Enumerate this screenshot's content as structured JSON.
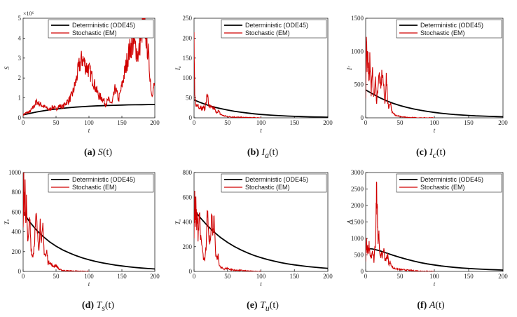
{
  "legend": {
    "deterministic": "Deterministic (ODE45)",
    "stochastic": "Stochastic (EM)"
  },
  "colors": {
    "deterministic": "#000000",
    "stochastic": "#d00000"
  },
  "chart_data": [
    {
      "id": "a",
      "type": "line",
      "caption_tag": "(a)",
      "caption_var": "S",
      "caption_arg": "(t)",
      "ylabel": "S",
      "xlabel": "t",
      "exponent": "×10⁶",
      "xlim": [
        0,
        200
      ],
      "ylim": [
        0,
        5
      ],
      "xticks": [
        0,
        50,
        100,
        150,
        200
      ],
      "yticks": [
        0,
        1,
        2,
        3,
        4,
        5
      ],
      "series": [
        {
          "name": "Deterministic (ODE45)",
          "x": [
            0,
            10,
            20,
            30,
            40,
            50,
            60,
            70,
            80,
            90,
            100,
            110,
            120,
            130,
            140,
            150,
            160,
            170,
            180,
            190,
            200
          ],
          "y": [
            0.15,
            0.22,
            0.29,
            0.35,
            0.4,
            0.44,
            0.48,
            0.51,
            0.54,
            0.56,
            0.58,
            0.6,
            0.61,
            0.62,
            0.63,
            0.64,
            0.65,
            0.655,
            0.66,
            0.665,
            0.67
          ]
        },
        {
          "name": "Stochastic (EM)",
          "x": [
            0,
            5,
            10,
            15,
            20,
            25,
            30,
            35,
            40,
            45,
            50,
            55,
            60,
            65,
            70,
            75,
            80,
            85,
            90,
            95,
            100,
            105,
            110,
            115,
            120,
            125,
            130,
            135,
            140,
            145,
            150,
            155,
            160,
            165,
            170,
            175,
            180,
            185,
            190,
            195,
            200
          ],
          "y": [
            0.15,
            0.25,
            0.3,
            0.5,
            0.8,
            0.7,
            0.6,
            0.5,
            0.4,
            0.55,
            0.45,
            0.6,
            0.55,
            0.75,
            0.9,
            1.2,
            1.8,
            2.6,
            3.0,
            2.6,
            2.4,
            2.0,
            1.5,
            1.1,
            1.0,
            0.7,
            0.9,
            0.7,
            1.5,
            0.9,
            1.6,
            2.4,
            3.2,
            3.7,
            3.6,
            3.1,
            4.4,
            4.6,
            3.2,
            1.2,
            1.7
          ]
        }
      ]
    },
    {
      "id": "b",
      "type": "line",
      "caption_tag": "(b)",
      "caption_var": "I",
      "caption_sub": "a",
      "caption_arg": "(t)",
      "ylabel": "Iₐ",
      "xlabel": "t",
      "exponent": "",
      "xlim": [
        0,
        200
      ],
      "ylim": [
        0,
        250
      ],
      "xticks": [
        0,
        50,
        100,
        150,
        200
      ],
      "yticks": [
        0,
        50,
        100,
        150,
        200,
        250
      ],
      "series": [
        {
          "name": "Deterministic (ODE45)",
          "x": [
            0,
            10,
            20,
            30,
            40,
            50,
            60,
            70,
            80,
            90,
            100,
            110,
            120,
            130,
            140,
            150,
            160,
            170,
            180,
            190,
            200
          ],
          "y": [
            45,
            38,
            32,
            27,
            23,
            19.5,
            16.5,
            14,
            12,
            10,
            8.5,
            7.2,
            6.1,
            5.2,
            4.4,
            3.7,
            3.1,
            2.6,
            2.2,
            1.9,
            1.6
          ]
        },
        {
          "name": "Stochastic (EM)",
          "x": [
            0,
            1,
            2,
            4,
            6,
            8,
            10,
            12,
            14,
            16,
            18,
            20,
            22,
            24,
            26,
            28,
            30,
            33,
            36,
            40,
            45,
            50,
            60,
            70,
            80,
            90,
            100
          ],
          "y": [
            200,
            50,
            40,
            28,
            35,
            25,
            30,
            22,
            28,
            20,
            45,
            58,
            30,
            28,
            25,
            22,
            26,
            12,
            18,
            8,
            5,
            3,
            2,
            1,
            0.5,
            0.3,
            0
          ]
        }
      ]
    },
    {
      "id": "c",
      "type": "line",
      "caption_tag": "(c)",
      "caption_var": "I",
      "caption_sub": "c",
      "caption_arg": "(t)",
      "ylabel": "Iᶜ",
      "xlabel": "t",
      "exponent": "",
      "xlim": [
        0,
        200
      ],
      "ylim": [
        0,
        1500
      ],
      "xticks": [
        0,
        50,
        100,
        150,
        200
      ],
      "yticks": [
        0,
        500,
        1000,
        1500
      ],
      "series": [
        {
          "name": "Deterministic (ODE45)",
          "x": [
            0,
            10,
            20,
            30,
            40,
            50,
            60,
            70,
            80,
            90,
            100,
            110,
            120,
            130,
            140,
            150,
            160,
            170,
            180,
            190,
            200
          ],
          "y": [
            420,
            360,
            305,
            258,
            218,
            185,
            157,
            133,
            113,
            96,
            81,
            69,
            58,
            49,
            42,
            36,
            30,
            26,
            22,
            19,
            16
          ]
        },
        {
          "name": "Stochastic (EM)",
          "x": [
            0,
            1,
            2,
            3,
            4,
            5,
            6,
            8,
            10,
            12,
            14,
            16,
            18,
            20,
            22,
            24,
            26,
            28,
            30,
            32,
            34,
            36,
            38,
            40,
            45,
            50,
            55,
            60,
            70,
            80,
            90,
            100
          ],
          "y": [
            300,
            1250,
            700,
            1000,
            800,
            550,
            900,
            400,
            650,
            300,
            550,
            250,
            500,
            650,
            420,
            700,
            500,
            200,
            600,
            250,
            150,
            250,
            100,
            60,
            40,
            20,
            10,
            5,
            2,
            1,
            0,
            0
          ]
        }
      ]
    },
    {
      "id": "d",
      "type": "line",
      "caption_tag": "(d)",
      "caption_var": "T",
      "caption_sub": "s",
      "caption_arg": "(t)",
      "ylabel": "Tₛ",
      "xlabel": "t",
      "exponent": "",
      "xlim": [
        0,
        200
      ],
      "ylim": [
        0,
        1000
      ],
      "xticks": [
        0,
        50,
        100,
        150,
        200
      ],
      "yticks": [
        0,
        200,
        400,
        600,
        800,
        1000
      ],
      "series": [
        {
          "name": "Deterministic (ODE45)",
          "x": [
            0,
            10,
            20,
            30,
            40,
            50,
            60,
            70,
            80,
            90,
            100,
            110,
            120,
            130,
            140,
            150,
            160,
            170,
            180,
            190,
            200
          ],
          "y": [
            600,
            500,
            420,
            355,
            300,
            255,
            218,
            187,
            160,
            137,
            118,
            101,
            87,
            75,
            64,
            55,
            47,
            40,
            34,
            29,
            25
          ]
        },
        {
          "name": "Stochastic (EM)",
          "x": [
            0,
            1,
            2,
            3,
            4,
            5,
            6,
            8,
            10,
            12,
            14,
            16,
            18,
            20,
            22,
            24,
            26,
            28,
            30,
            32,
            34,
            36,
            38,
            40,
            45,
            50,
            55,
            60,
            70,
            80,
            90,
            100
          ],
          "y": [
            500,
            900,
            650,
            800,
            500,
            700,
            450,
            300,
            550,
            250,
            150,
            200,
            400,
            550,
            350,
            250,
            500,
            300,
            420,
            200,
            150,
            200,
            80,
            100,
            50,
            60,
            20,
            10,
            5,
            3,
            1,
            0
          ]
        }
      ]
    },
    {
      "id": "e",
      "type": "line",
      "caption_tag": "(e)",
      "caption_var": "T",
      "caption_sub": "u",
      "caption_arg": "(t)",
      "ylabel": "Tᵤ",
      "xlabel": "t",
      "exponent": "",
      "xlim": [
        0,
        200
      ],
      "ylim": [
        0,
        800
      ],
      "xticks": [
        0,
        50,
        100,
        150,
        200
      ],
      "yticks": [
        0,
        200,
        400,
        600,
        800
      ],
      "series": [
        {
          "name": "Deterministic (ODE45)",
          "x": [
            0,
            10,
            20,
            30,
            40,
            50,
            60,
            70,
            80,
            90,
            100,
            110,
            120,
            130,
            140,
            150,
            160,
            170,
            180,
            190,
            200
          ],
          "y": [
            500,
            430,
            370,
            318,
            273,
            235,
            202,
            174,
            150,
            129,
            111,
            96,
            83,
            71,
            61,
            53,
            46,
            39,
            34,
            29,
            25
          ]
        },
        {
          "name": "Stochastic (EM)",
          "x": [
            0,
            1,
            2,
            3,
            4,
            5,
            6,
            8,
            10,
            12,
            14,
            16,
            18,
            20,
            22,
            24,
            26,
            28,
            30,
            32,
            34,
            36,
            38,
            40,
            45,
            50,
            55,
            60,
            70,
            80,
            90,
            100
          ],
          "y": [
            300,
            620,
            400,
            550,
            350,
            450,
            300,
            500,
            250,
            200,
            100,
            80,
            200,
            500,
            300,
            250,
            450,
            350,
            400,
            150,
            100,
            120,
            50,
            30,
            20,
            25,
            15,
            10,
            8,
            3,
            1,
            0
          ]
        }
      ]
    },
    {
      "id": "f",
      "type": "line",
      "caption_tag": "(f)",
      "caption_var": "A",
      "caption_arg": "(t)",
      "ylabel": "A",
      "xlabel": "t",
      "exponent": "",
      "xlim": [
        0,
        200
      ],
      "ylim": [
        0,
        3000
      ],
      "xticks": [
        0,
        50,
        100,
        150,
        200
      ],
      "yticks": [
        0,
        500,
        1000,
        1500,
        2000,
        2500,
        3000
      ],
      "series": [
        {
          "name": "Deterministic (ODE45)",
          "x": [
            0,
            10,
            20,
            30,
            40,
            50,
            60,
            70,
            80,
            90,
            100,
            110,
            120,
            130,
            140,
            150,
            160,
            170,
            180,
            190,
            200
          ],
          "y": [
            700,
            680,
            630,
            560,
            490,
            425,
            365,
            312,
            267,
            228,
            195,
            167,
            143,
            122,
            104,
            89,
            76,
            65,
            56,
            48,
            41
          ]
        },
        {
          "name": "Stochastic (EM)",
          "x": [
            0,
            1,
            2,
            3,
            4,
            5,
            6,
            8,
            10,
            12,
            14,
            15,
            16,
            17,
            18,
            19,
            20,
            22,
            24,
            26,
            28,
            30,
            32,
            34,
            36,
            38,
            40,
            45,
            50,
            60,
            70,
            80,
            90,
            100
          ],
          "y": [
            300,
            950,
            600,
            750,
            500,
            800,
            550,
            400,
            600,
            300,
            800,
            1500,
            2700,
            1900,
            900,
            1200,
            600,
            500,
            450,
            700,
            400,
            350,
            500,
            200,
            300,
            150,
            100,
            80,
            60,
            40,
            20,
            10,
            5,
            0
          ]
        }
      ]
    }
  ]
}
